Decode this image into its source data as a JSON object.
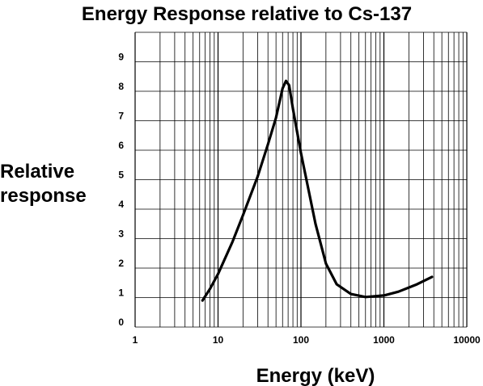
{
  "chart_data": {
    "type": "line",
    "title": "Energy Response relative to Cs-137",
    "ylabel_line1": "Relative",
    "ylabel_line2": "response",
    "xlabel": "Energy (keV)",
    "x_scale": "log",
    "xlim": [
      1,
      10000
    ],
    "ylim": [
      0,
      10
    ],
    "x_ticks": [
      1,
      10,
      100,
      1000,
      10000
    ],
    "x_tick_labels": [
      "1",
      "10",
      "100",
      "1000",
      "10000"
    ],
    "y_ticks": [
      0,
      1,
      2,
      3,
      4,
      5,
      6,
      7,
      8,
      9
    ],
    "y_tick_labels": [
      "0",
      "1",
      "2",
      "3",
      "4",
      "5",
      "6",
      "7",
      "8",
      "9"
    ],
    "grid": true,
    "legend": "none",
    "series": [
      {
        "color": "#000000",
        "points": [
          [
            6.5,
            0.9
          ],
          [
            8,
            1.3
          ],
          [
            10,
            1.8
          ],
          [
            15,
            2.9
          ],
          [
            20,
            3.8
          ],
          [
            30,
            5.1
          ],
          [
            40,
            6.2
          ],
          [
            50,
            7.1
          ],
          [
            60,
            8.1
          ],
          [
            66,
            8.35
          ],
          [
            72,
            8.2
          ],
          [
            80,
            7.4
          ],
          [
            100,
            5.9
          ],
          [
            150,
            3.5
          ],
          [
            200,
            2.15
          ],
          [
            270,
            1.45
          ],
          [
            400,
            1.12
          ],
          [
            600,
            1.02
          ],
          [
            1000,
            1.07
          ],
          [
            1500,
            1.2
          ],
          [
            2500,
            1.45
          ],
          [
            3800,
            1.7
          ]
        ]
      }
    ]
  }
}
